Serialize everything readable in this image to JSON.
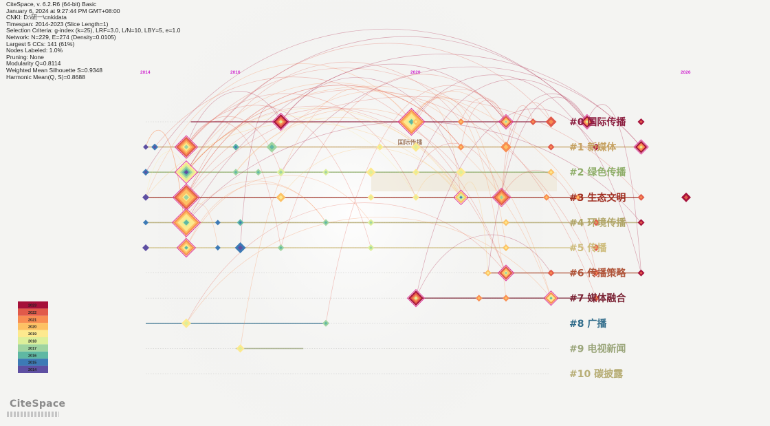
{
  "info": [
    "CiteSpace, v. 6.2.R6 (64-bit) Basic",
    "January 6, 2024 at 9:27:44 PM GMT+08:00",
    "CNKI: D:\\研一\\cnkidata",
    "Timespan: 2014-2023 (Slice Length=1)",
    "Selection Criteria: g-index (k=25), LRF=3.0, L/N=10, LBY=5, e=1.0",
    "Network: N=229, E=274 (Density=0.0105)",
    "Largest 5 CCs: 141 (61%)",
    "Nodes Labeled: 1.0%",
    "Pruning: None",
    "Modularity Q=0.8114",
    "Weighted Mean Silhouette S=0.9348",
    "Harmonic Mean(Q, S)=0.8688"
  ],
  "logo_text": "CiteSpace",
  "chart_data": {
    "type": "timeline",
    "timeline_ticks": [
      {
        "label": "2014",
        "year": 2014
      },
      {
        "label": "2016",
        "year": 2016
      },
      {
        "label": "2020",
        "year": 2020
      },
      {
        "label": "2026",
        "year": 2026
      }
    ],
    "year_colors": {
      "2014": "#5e4fa2",
      "2015": "#3d7ab5",
      "2016": "#5fb8a3",
      "2017": "#9fd4a0",
      "2018": "#dcef9a",
      "2019": "#fde98e",
      "2020": "#fdc164",
      "2021": "#f88d52",
      "2022": "#e15a4a",
      "2023": "#a5103a"
    },
    "legend_years": [
      "2023",
      "2022",
      "2021",
      "2020",
      "2019",
      "2018",
      "2017",
      "2016",
      "2015",
      "2014"
    ],
    "clusters": [
      {
        "id": 0,
        "label": "#0 国际传播",
        "color": "#8b1e3f",
        "start": 2015.0,
        "end": 2023.0,
        "nodes": [
          [
            2017,
            11,
            2023
          ],
          [
            2019.9,
            18,
            2021
          ],
          [
            2020,
            5,
            2020
          ],
          [
            2021,
            5,
            2021
          ],
          [
            2022,
            9,
            2022
          ],
          [
            2022.6,
            5,
            2022
          ],
          [
            2023,
            8,
            2022
          ],
          [
            2023.8,
            9,
            2023
          ],
          [
            2025,
            5,
            2023
          ]
        ],
        "node_labels": [
          {
            "text": "国际传播",
            "year": 2019.9
          }
        ]
      },
      {
        "id": 1,
        "label": "#1 新媒体",
        "color": "#c6a263",
        "start": 2014.0,
        "end": 2025.0,
        "nodes": [
          [
            2014,
            4,
            2014
          ],
          [
            2014.2,
            5,
            2015
          ],
          [
            2014.9,
            15,
            2022
          ],
          [
            2016,
            5,
            2016
          ],
          [
            2016.8,
            8,
            2017
          ],
          [
            2019.2,
            5,
            2019
          ],
          [
            2020,
            7,
            2019
          ],
          [
            2021,
            5,
            2021
          ],
          [
            2022,
            8,
            2021
          ],
          [
            2023,
            5,
            2022
          ],
          [
            2024,
            5,
            2023
          ],
          [
            2025,
            9,
            2023
          ]
        ],
        "node_labels": []
      },
      {
        "id": 2,
        "label": "#2 绿色传播",
        "color": "#8fae6a",
        "start": 2014.0,
        "end": 2023.0,
        "nodes": [
          [
            2014,
            5,
            2015
          ],
          [
            2014.9,
            15,
            2019
          ],
          [
            2016,
            5,
            2017
          ],
          [
            2016.5,
            5,
            2017
          ],
          [
            2017,
            6,
            2018
          ],
          [
            2018,
            5,
            2018
          ],
          [
            2019,
            7,
            2019
          ],
          [
            2020,
            5,
            2019
          ],
          [
            2021,
            7,
            2019
          ],
          [
            2023,
            5,
            2020
          ]
        ],
        "node_labels": []
      },
      {
        "id": 3,
        "label": "#3 生态文明",
        "color": "#a03023",
        "start": 2014.0,
        "end": 2025.0,
        "nodes": [
          [
            2014,
            5,
            2014
          ],
          [
            2014.9,
            18,
            2022
          ],
          [
            2017,
            7,
            2020
          ],
          [
            2019,
            5,
            2019
          ],
          [
            2020,
            5,
            2019
          ],
          [
            2021,
            9,
            2020
          ],
          [
            2021.9,
            12,
            2022
          ],
          [
            2022.9,
            5,
            2021
          ],
          [
            2023.6,
            5,
            2021
          ],
          [
            2025,
            5,
            2022
          ],
          [
            2026,
            7,
            2023
          ]
        ],
        "node_labels": []
      },
      {
        "id": 4,
        "label": "#4 环境传播",
        "color": "#b0a567",
        "start": 2014.0,
        "end": 2025.0,
        "nodes": [
          [
            2014,
            4,
            2015
          ],
          [
            2014.9,
            19,
            2021
          ],
          [
            2015.6,
            4,
            2015
          ],
          [
            2016.1,
            5,
            2016
          ],
          [
            2018,
            5,
            2017
          ],
          [
            2019,
            5,
            2018
          ],
          [
            2022,
            5,
            2020
          ],
          [
            2024,
            5,
            2022
          ],
          [
            2025,
            5,
            2023
          ]
        ],
        "node_labels": []
      },
      {
        "id": 5,
        "label": "#5 传播",
        "color": "#cdbb7a",
        "start": 2014.0,
        "end": 2023.5,
        "nodes": [
          [
            2014,
            5,
            2014
          ],
          [
            2014.9,
            12,
            2021
          ],
          [
            2015.6,
            4,
            2015
          ],
          [
            2016.1,
            8,
            2015
          ],
          [
            2017,
            5,
            2017
          ],
          [
            2019,
            5,
            2018
          ],
          [
            2022,
            5,
            2020
          ],
          [
            2024,
            5,
            2022
          ]
        ],
        "node_labels": []
      },
      {
        "id": 6,
        "label": "#6 传播策略",
        "color": "#b0553a",
        "start": 2021.5,
        "end": 2025.0,
        "nodes": [
          [
            2021.6,
            5,
            2020
          ],
          [
            2022,
            10,
            2022
          ],
          [
            2023,
            5,
            2022
          ],
          [
            2024,
            5,
            2022
          ],
          [
            2025,
            5,
            2023
          ]
        ],
        "node_labels": []
      },
      {
        "id": 7,
        "label": "#7 媒体融合",
        "color": "#7b2436",
        "start": 2020.0,
        "end": 2024.0,
        "nodes": [
          [
            2020,
            11,
            2023
          ],
          [
            2021.4,
            5,
            2021
          ],
          [
            2022,
            5,
            2021
          ],
          [
            2023,
            9,
            2021
          ],
          [
            2024,
            5,
            2022
          ]
        ],
        "node_labels": []
      },
      {
        "id": 8,
        "label": "#8 广播",
        "color": "#2f6b8a",
        "start": 2014.0,
        "end": 2018.0,
        "nodes": [
          [
            2014.9,
            7,
            2019
          ],
          [
            2018,
            5,
            2017
          ]
        ],
        "node_labels": []
      },
      {
        "id": 9,
        "label": "#9 电视新闻",
        "color": "#9aa57a",
        "start": 2016.0,
        "end": 2017.5,
        "nodes": [
          [
            2016.1,
            6,
            2019
          ]
        ],
        "node_labels": []
      },
      {
        "id": 10,
        "label": "#10 碳披露",
        "color": "#b7ad75",
        "start": null,
        "end": null,
        "nodes": [],
        "node_labels": []
      }
    ]
  }
}
